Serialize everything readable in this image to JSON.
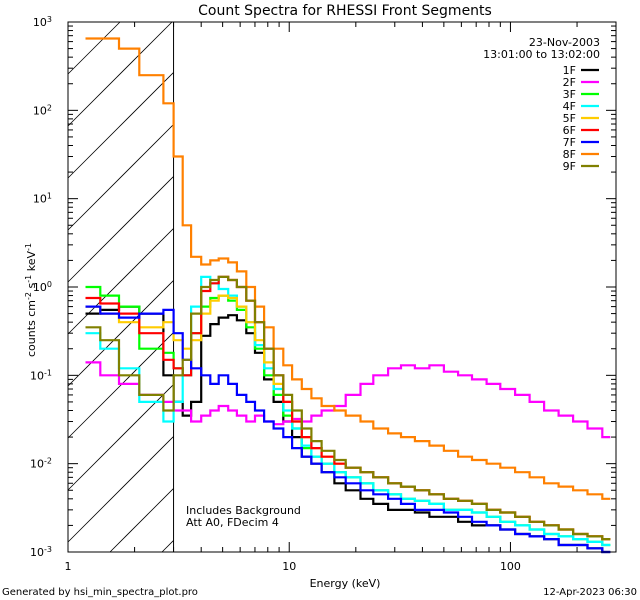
{
  "chart_data": {
    "type": "line",
    "plot_style": "step",
    "title": "Count Spectra for RHESSI Front Segments",
    "xlabel": "Energy (keV)",
    "ylabel_base": "counts cm",
    "ylabel_exp1": "-2",
    "ylabel_mid1": " s",
    "ylabel_exp2": "-1",
    "ylabel_mid2": " keV",
    "ylabel_exp3": "-1",
    "xscale": "log",
    "yscale": "log",
    "xlim": [
      1,
      300
    ],
    "ylim": [
      0.001,
      1000
    ],
    "x_ticks": [
      {
        "value": 1,
        "label": "1"
      },
      {
        "value": 10,
        "label": "10"
      },
      {
        "value": 100,
        "label": "100"
      }
    ],
    "y_ticks": [
      {
        "value": 0.001,
        "base": "10",
        "exp": "-3"
      },
      {
        "value": 0.01,
        "base": "10",
        "exp": "-2"
      },
      {
        "value": 0.1,
        "base": "10",
        "exp": "-1"
      },
      {
        "value": 1,
        "base": "10",
        "exp": "0"
      },
      {
        "value": 10,
        "base": "10",
        "exp": "1"
      },
      {
        "value": 100,
        "base": "10",
        "exp": "2"
      },
      {
        "value": 1000,
        "base": "10",
        "exp": "3"
      }
    ],
    "hatched_region": {
      "x_min": 1,
      "x_max": 3
    },
    "date": "23-Nov-2003",
    "time_range": "13:01:00 to 13:02:00",
    "annotation_lines": [
      "Includes Background",
      "Att A0, FDecim 4"
    ],
    "footer_left": "Generated by hsi_min_spectra_plot.pro",
    "footer_right": "12-Apr-2023 06:30",
    "series": [
      {
        "name": "1F",
        "color": "#000000",
        "x": [
          1.2,
          1.4,
          1.7,
          2.1,
          2.7,
          3.0,
          3.3,
          3.6,
          4.0,
          4.4,
          4.8,
          5.3,
          5.8,
          6.4,
          7.0,
          7.7,
          8.5,
          9.4,
          10.3,
          11.4,
          12.6,
          14,
          16,
          18,
          21,
          24,
          28,
          32,
          37,
          43,
          50,
          58,
          67,
          78,
          90,
          105,
          122,
          142,
          165,
          192,
          223,
          260
        ],
        "y": [
          0.5,
          0.55,
          0.6,
          0.5,
          0.1,
          0.05,
          0.035,
          0.05,
          0.28,
          0.38,
          0.45,
          0.48,
          0.42,
          0.3,
          0.18,
          0.09,
          0.05,
          0.03,
          0.02,
          0.012,
          0.01,
          0.008,
          0.006,
          0.005,
          0.004,
          0.0035,
          0.003,
          0.003,
          0.0028,
          0.0025,
          0.0025,
          0.0022,
          0.002,
          0.002,
          0.0018,
          0.0016,
          0.0015,
          0.0014,
          0.0012,
          0.0012,
          0.0011,
          0.001
        ]
      },
      {
        "name": "2F",
        "color": "#ff00ff",
        "x": [
          1.2,
          1.4,
          1.7,
          2.1,
          2.7,
          3.0,
          3.3,
          3.6,
          4.0,
          4.4,
          4.8,
          5.3,
          5.8,
          6.4,
          7.0,
          7.7,
          8.5,
          9.4,
          10.3,
          11.4,
          12.6,
          14,
          16,
          18,
          21,
          24,
          28,
          32,
          37,
          43,
          50,
          58,
          67,
          78,
          90,
          105,
          122,
          142,
          165,
          192,
          223,
          260
        ],
        "y": [
          0.14,
          0.1,
          0.08,
          0.06,
          0.05,
          0.04,
          0.04,
          0.03,
          0.035,
          0.04,
          0.045,
          0.04,
          0.035,
          0.03,
          0.035,
          0.03,
          0.028,
          0.03,
          0.032,
          0.03,
          0.035,
          0.04,
          0.045,
          0.06,
          0.08,
          0.1,
          0.12,
          0.13,
          0.12,
          0.13,
          0.11,
          0.1,
          0.09,
          0.08,
          0.07,
          0.06,
          0.05,
          0.04,
          0.035,
          0.03,
          0.025,
          0.02
        ]
      },
      {
        "name": "3F",
        "color": "#00ff00",
        "x": [
          1.2,
          1.4,
          1.7,
          2.1,
          2.7,
          3.0,
          3.3,
          3.6,
          4.0,
          4.4,
          4.8,
          5.3,
          5.8,
          6.4,
          7.0,
          7.7,
          8.5,
          9.4,
          10.3,
          11.4,
          12.6,
          14,
          16,
          18,
          21,
          24,
          28,
          32,
          37,
          43,
          50,
          58,
          67,
          78,
          90,
          105,
          122,
          142,
          165,
          192,
          223,
          260
        ],
        "y": [
          1.0,
          0.8,
          0.6,
          0.2,
          0.18,
          0.12,
          0.1,
          0.3,
          0.6,
          0.75,
          0.8,
          0.7,
          0.55,
          0.35,
          0.2,
          0.1,
          0.06,
          0.035,
          0.025,
          0.015,
          0.012,
          0.01,
          0.008,
          0.007,
          0.006,
          0.005,
          0.0045,
          0.004,
          0.0038,
          0.0035,
          0.003,
          0.003,
          0.0028,
          0.0025,
          0.0022,
          0.002,
          0.0018,
          0.0016,
          0.0015,
          0.0014,
          0.0013,
          0.0012
        ]
      },
      {
        "name": "4F",
        "color": "#00ffff",
        "x": [
          1.2,
          1.4,
          1.7,
          2.1,
          2.7,
          3.0,
          3.3,
          3.6,
          4.0,
          4.4,
          4.8,
          5.3,
          5.8,
          6.4,
          7.0,
          7.7,
          8.5,
          9.4,
          10.3,
          11.4,
          12.6,
          14,
          16,
          18,
          21,
          24,
          28,
          32,
          37,
          43,
          50,
          58,
          67,
          78,
          90,
          105,
          122,
          142,
          165,
          192,
          223,
          260
        ],
        "y": [
          0.3,
          0.2,
          0.12,
          0.05,
          0.03,
          0.05,
          0.1,
          0.6,
          1.3,
          1.1,
          0.95,
          0.8,
          0.6,
          0.4,
          0.22,
          0.12,
          0.07,
          0.04,
          0.025,
          0.016,
          0.012,
          0.01,
          0.008,
          0.007,
          0.006,
          0.005,
          0.0045,
          0.004,
          0.0038,
          0.0035,
          0.003,
          0.003,
          0.0028,
          0.0025,
          0.0022,
          0.002,
          0.0018,
          0.0016,
          0.0015,
          0.0014,
          0.0013,
          0.0012
        ]
      },
      {
        "name": "5F",
        "color": "#ffcc00",
        "x": [
          1.2,
          1.4,
          1.7,
          2.1,
          2.7,
          3.0,
          3.3,
          3.6,
          4.0,
          4.4,
          4.8,
          5.3,
          5.8,
          6.4,
          7.0,
          7.7,
          8.5,
          9.4,
          10.3,
          11.4,
          12.6,
          14,
          16,
          18,
          21,
          24,
          28,
          32,
          37,
          43,
          50,
          58,
          67,
          78,
          90,
          105,
          122,
          142,
          165,
          192,
          223,
          260
        ],
        "y": [
          0.6,
          0.5,
          0.4,
          0.35,
          0.4,
          0.25,
          0.2,
          0.25,
          0.5,
          0.7,
          0.8,
          0.75,
          0.6,
          0.4,
          0.25,
          0.14,
          0.08,
          0.05,
          0.03,
          0.02,
          0.015,
          0.012,
          0.01,
          0.009,
          0.008,
          0.007,
          0.006,
          0.0055,
          0.005,
          0.0045,
          0.004,
          0.0038,
          0.0035,
          0.003,
          0.0028,
          0.0025,
          0.0022,
          0.002,
          0.0018,
          0.0016,
          0.0015,
          0.0014
        ]
      },
      {
        "name": "6F",
        "color": "#ff0000",
        "x": [
          1.2,
          1.4,
          1.7,
          2.1,
          2.7,
          3.0,
          3.3,
          3.6,
          4.0,
          4.4,
          4.8,
          5.3,
          5.8,
          6.4,
          7.0,
          7.7,
          8.5,
          9.4,
          10.3,
          11.4,
          12.6,
          14,
          16,
          18,
          21,
          24,
          28,
          32,
          37,
          43,
          50,
          58,
          67,
          78,
          90,
          105,
          122,
          142,
          165,
          192,
          223,
          260
        ],
        "y": [
          0.75,
          0.65,
          0.5,
          0.3,
          0.15,
          0.12,
          0.1,
          0.3,
          0.9,
          1.1,
          1.3,
          1.2,
          1.0,
          0.7,
          0.4,
          0.2,
          0.1,
          0.05,
          0.03,
          0.02,
          0.015,
          0.012,
          0.01,
          0.009,
          0.008,
          0.007,
          0.006,
          0.0055,
          0.005,
          0.0045,
          0.004,
          0.0038,
          0.0035,
          0.003,
          0.0028,
          0.0025,
          0.0022,
          0.002,
          0.0018,
          0.0016,
          0.0015,
          0.0014
        ]
      },
      {
        "name": "7F",
        "color": "#0000ff",
        "x": [
          1.2,
          1.4,
          1.7,
          2.1,
          2.7,
          3.0,
          3.3,
          3.6,
          4.0,
          4.4,
          4.8,
          5.3,
          5.8,
          6.4,
          7.0,
          7.7,
          8.5,
          9.4,
          10.3,
          11.4,
          12.6,
          14,
          16,
          18,
          21,
          24,
          28,
          32,
          37,
          43,
          50,
          58,
          67,
          78,
          90,
          105,
          122,
          142,
          165,
          192,
          223,
          260
        ],
        "y": [
          0.6,
          0.5,
          0.45,
          0.5,
          0.55,
          0.3,
          0.15,
          0.12,
          0.1,
          0.08,
          0.1,
          0.08,
          0.06,
          0.05,
          0.04,
          0.03,
          0.025,
          0.02,
          0.015,
          0.012,
          0.01,
          0.008,
          0.007,
          0.006,
          0.005,
          0.0045,
          0.004,
          0.0035,
          0.003,
          0.003,
          0.0028,
          0.0025,
          0.0022,
          0.002,
          0.0018,
          0.0016,
          0.0015,
          0.0014,
          0.0012,
          0.0012,
          0.0011,
          0.001
        ]
      },
      {
        "name": "8F",
        "color": "#ff8000",
        "x": [
          1.2,
          1.4,
          1.7,
          2.1,
          2.7,
          3.0,
          3.3,
          3.6,
          4.0,
          4.4,
          4.8,
          5.3,
          5.8,
          6.4,
          7.0,
          7.7,
          8.5,
          9.4,
          10.3,
          11.4,
          12.6,
          14,
          16,
          18,
          21,
          24,
          28,
          32,
          37,
          43,
          50,
          58,
          67,
          78,
          90,
          105,
          122,
          142,
          165,
          192,
          223,
          260
        ],
        "y": [
          650,
          650,
          500,
          250,
          120,
          30,
          5,
          2.2,
          1.8,
          2.0,
          2.1,
          1.9,
          1.5,
          1.0,
          0.6,
          0.35,
          0.2,
          0.13,
          0.09,
          0.07,
          0.055,
          0.045,
          0.04,
          0.035,
          0.03,
          0.025,
          0.022,
          0.02,
          0.018,
          0.016,
          0.014,
          0.012,
          0.011,
          0.01,
          0.009,
          0.008,
          0.007,
          0.006,
          0.0055,
          0.005,
          0.0045,
          0.004
        ]
      },
      {
        "name": "9F",
        "color": "#808000",
        "x": [
          1.2,
          1.4,
          1.7,
          2.1,
          2.7,
          3.0,
          3.3,
          3.6,
          4.0,
          4.4,
          4.8,
          5.3,
          5.8,
          6.4,
          7.0,
          7.7,
          8.5,
          9.4,
          10.3,
          11.4,
          12.6,
          14,
          16,
          18,
          21,
          24,
          28,
          32,
          37,
          43,
          50,
          58,
          67,
          78,
          90,
          105,
          122,
          142,
          165,
          192,
          223,
          260
        ],
        "y": [
          0.35,
          0.25,
          0.1,
          0.06,
          0.04,
          0.1,
          0.15,
          0.5,
          1.0,
          1.2,
          1.3,
          1.2,
          1.0,
          0.7,
          0.4,
          0.2,
          0.1,
          0.06,
          0.04,
          0.025,
          0.018,
          0.014,
          0.011,
          0.009,
          0.008,
          0.007,
          0.006,
          0.0055,
          0.005,
          0.0045,
          0.004,
          0.0038,
          0.0035,
          0.003,
          0.0028,
          0.0025,
          0.0022,
          0.002,
          0.0018,
          0.0016,
          0.0015,
          0.0014
        ]
      }
    ]
  }
}
